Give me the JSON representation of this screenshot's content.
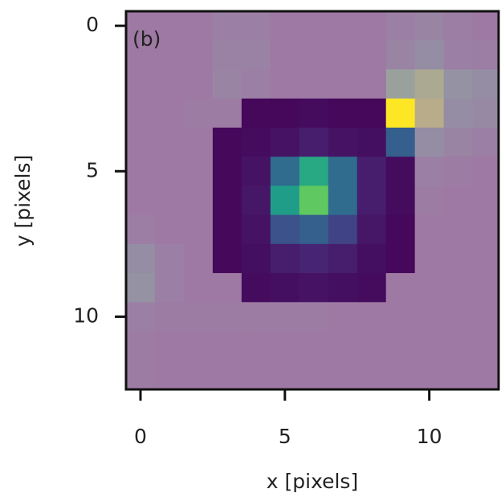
{
  "chart_data": {
    "type": "heatmap",
    "annotation": "(b)",
    "x_label": "x [pixels]",
    "y_label": "y [pixels]",
    "xlim": [
      -0.5,
      12.4
    ],
    "ylim": [
      12.5,
      -0.5
    ],
    "xticks": [
      0,
      5,
      10
    ],
    "yticks": [
      0,
      5,
      10
    ],
    "colormap": "viridis",
    "mask_color": "#e094b3",
    "mask_alpha": 0.6,
    "z": [
      [
        0.25,
        0.25,
        0.25,
        0.3,
        0.3,
        0.25,
        0.25,
        0.25,
        0.25,
        0.3,
        0.35,
        0.28,
        0.25
      ],
      [
        0.25,
        0.25,
        0.25,
        0.33,
        0.33,
        0.25,
        0.25,
        0.25,
        0.25,
        0.35,
        0.45,
        0.3,
        0.28
      ],
      [
        0.25,
        0.25,
        0.25,
        0.35,
        0.3,
        0.25,
        0.25,
        0.25,
        0.25,
        0.65,
        0.75,
        0.5,
        0.45
      ],
      [
        0.25,
        0.25,
        0.27,
        0.27,
        0.02,
        0.02,
        0.03,
        0.02,
        0.02,
        1.0,
        0.8,
        0.45,
        0.4
      ],
      [
        0.25,
        0.25,
        0.25,
        0.02,
        0.03,
        0.05,
        0.08,
        0.05,
        0.04,
        0.3,
        0.45,
        0.35,
        0.3
      ],
      [
        0.25,
        0.25,
        0.25,
        0.02,
        0.05,
        0.35,
        0.6,
        0.35,
        0.08,
        0.03,
        0.3,
        0.27,
        0.25
      ],
      [
        0.25,
        0.25,
        0.25,
        0.02,
        0.06,
        0.55,
        0.75,
        0.35,
        0.08,
        0.03,
        0.27,
        0.25,
        0.25
      ],
      [
        0.28,
        0.25,
        0.25,
        0.02,
        0.05,
        0.25,
        0.3,
        0.2,
        0.06,
        0.02,
        0.25,
        0.25,
        0.25
      ],
      [
        0.45,
        0.3,
        0.25,
        0.02,
        0.04,
        0.08,
        0.1,
        0.08,
        0.04,
        0.02,
        0.25,
        0.25,
        0.25
      ],
      [
        0.5,
        0.3,
        0.25,
        0.25,
        0.03,
        0.04,
        0.05,
        0.04,
        0.03,
        0.25,
        0.25,
        0.25,
        0.25
      ],
      [
        0.3,
        0.27,
        0.27,
        0.27,
        0.27,
        0.27,
        0.27,
        0.25,
        0.25,
        0.25,
        0.25,
        0.25,
        0.25
      ],
      [
        0.27,
        0.25,
        0.25,
        0.25,
        0.25,
        0.25,
        0.25,
        0.25,
        0.25,
        0.25,
        0.25,
        0.25,
        0.25
      ],
      [
        0.27,
        0.25,
        0.25,
        0.25,
        0.25,
        0.25,
        0.25,
        0.25,
        0.25,
        0.25,
        0.25,
        0.25,
        0.25
      ]
    ],
    "mask": [
      [
        1,
        1,
        1,
        1,
        1,
        1,
        1,
        1,
        1,
        1,
        1,
        1,
        1
      ],
      [
        1,
        1,
        1,
        1,
        1,
        1,
        1,
        1,
        1,
        1,
        1,
        1,
        1
      ],
      [
        1,
        1,
        1,
        1,
        1,
        1,
        1,
        1,
        1,
        1,
        1,
        1,
        1
      ],
      [
        1,
        1,
        1,
        1,
        0,
        0,
        0,
        0,
        0,
        0,
        1,
        1,
        1
      ],
      [
        1,
        1,
        1,
        0,
        0,
        0,
        0,
        0,
        0,
        0,
        1,
        1,
        1
      ],
      [
        1,
        1,
        1,
        0,
        0,
        0,
        0,
        0,
        0,
        0,
        1,
        1,
        1
      ],
      [
        1,
        1,
        1,
        0,
        0,
        0,
        0,
        0,
        0,
        0,
        1,
        1,
        1
      ],
      [
        1,
        1,
        1,
        0,
        0,
        0,
        0,
        0,
        0,
        0,
        1,
        1,
        1
      ],
      [
        1,
        1,
        1,
        0,
        0,
        0,
        0,
        0,
        0,
        0,
        1,
        1,
        1
      ],
      [
        1,
        1,
        1,
        1,
        0,
        0,
        0,
        0,
        0,
        1,
        1,
        1,
        1
      ],
      [
        1,
        1,
        1,
        1,
        1,
        1,
        1,
        1,
        1,
        1,
        1,
        1,
        1
      ],
      [
        1,
        1,
        1,
        1,
        1,
        1,
        1,
        1,
        1,
        1,
        1,
        1,
        1
      ],
      [
        1,
        1,
        1,
        1,
        1,
        1,
        1,
        1,
        1,
        1,
        1,
        1,
        1
      ]
    ]
  }
}
